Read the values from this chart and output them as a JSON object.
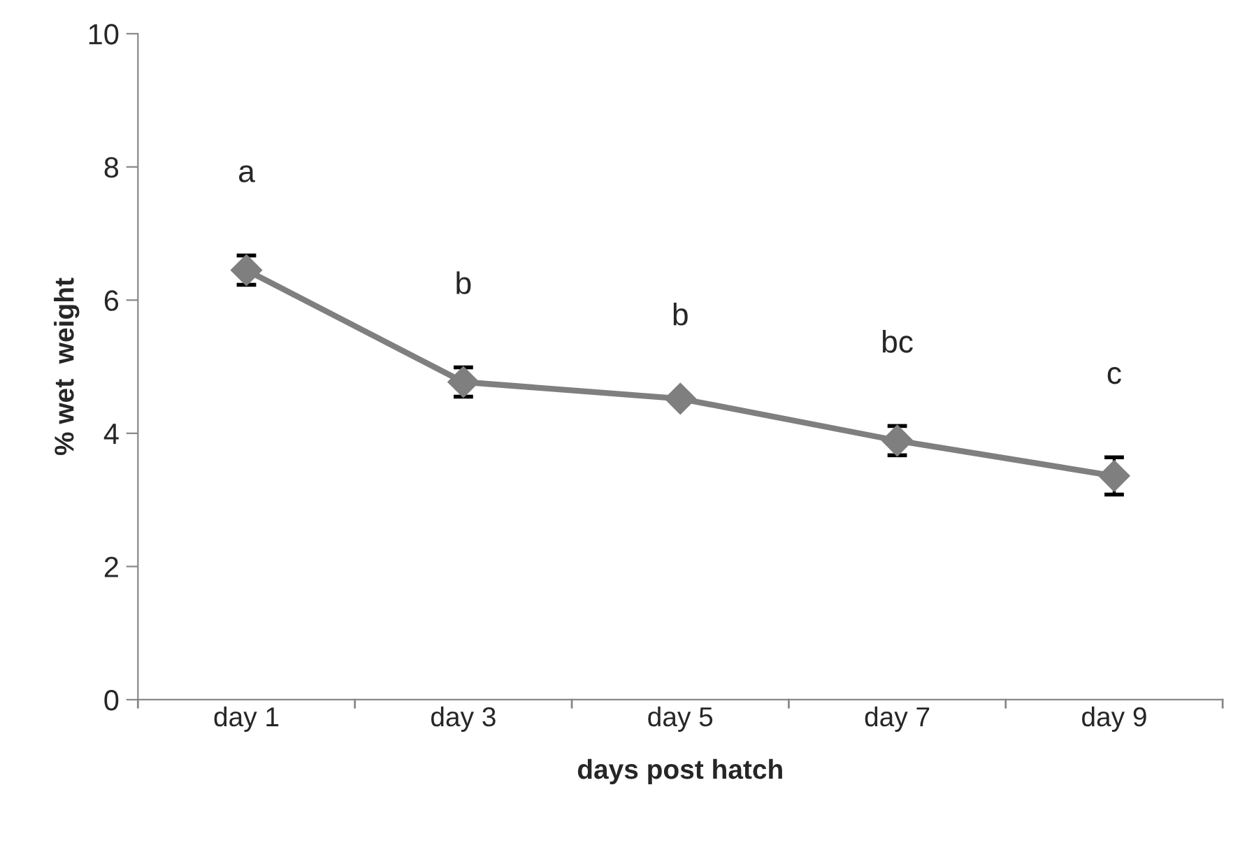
{
  "chart_data": {
    "type": "line",
    "xlabel": "days post hatch",
    "ylabel": "% wet  weight",
    "categories": [
      "day 1",
      "day 3",
      "day 5",
      "day 7",
      "day 9"
    ],
    "series": [
      {
        "color": "#7f7f7f",
        "values": [
          6.45,
          4.77,
          4.52,
          3.89,
          3.36
        ],
        "errors": [
          0.22,
          0.22,
          null,
          0.22,
          0.28
        ]
      }
    ],
    "ylim": [
      0,
      10
    ],
    "yticks": [
      0,
      2,
      4,
      6,
      8,
      10
    ],
    "grid": false,
    "legend": false,
    "marker": "diamond",
    "line_style": "solid",
    "annotations": [
      "a",
      "b",
      "b",
      "bc",
      "c"
    ]
  }
}
